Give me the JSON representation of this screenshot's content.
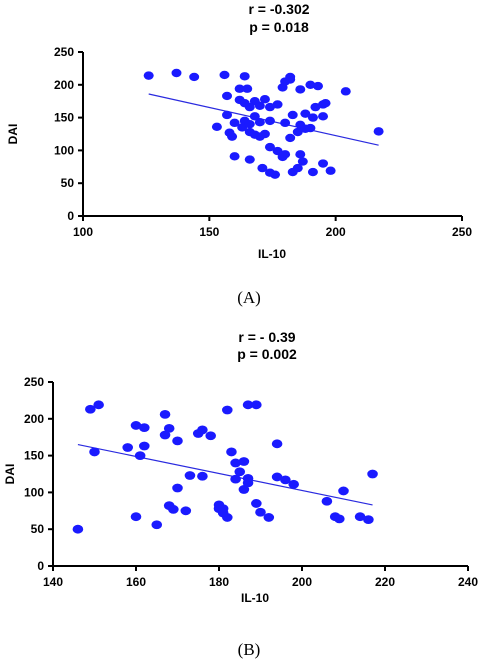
{
  "chart_data": [
    {
      "type": "scatter",
      "panel_label": "(A)",
      "annotation_r": "r = -0.302",
      "annotation_p": "p = 0.018",
      "xlabel": "IL-10",
      "ylabel": "DAI",
      "xlim": [
        100,
        250
      ],
      "ylim": [
        0,
        250
      ],
      "x_ticks": [
        "100",
        "150",
        "200",
        "250"
      ],
      "y_ticks": [
        "0",
        "50",
        "100",
        "150",
        "200",
        "250"
      ],
      "grid": false,
      "point_color": "#1a1aff",
      "line_color": "#2a2adf",
      "points": [
        [
          126,
          214
        ],
        [
          137,
          218
        ],
        [
          144,
          212
        ],
        [
          156,
          215
        ],
        [
          164,
          213
        ],
        [
          182,
          212
        ],
        [
          157,
          183
        ],
        [
          162,
          194
        ],
        [
          162,
          177
        ],
        [
          165,
          194
        ],
        [
          164,
          172
        ],
        [
          168,
          175
        ],
        [
          172,
          178
        ],
        [
          174,
          166
        ],
        [
          170,
          168
        ],
        [
          166,
          166
        ],
        [
          177,
          170
        ],
        [
          179,
          196
        ],
        [
          180,
          205
        ],
        [
          182,
          208
        ],
        [
          186,
          193
        ],
        [
          190,
          200
        ],
        [
          193,
          198
        ],
        [
          195,
          170
        ],
        [
          204,
          190
        ],
        [
          192,
          166
        ],
        [
          196,
          172
        ],
        [
          157,
          154
        ],
        [
          160,
          142
        ],
        [
          164,
          145
        ],
        [
          163,
          135
        ],
        [
          166,
          140
        ],
        [
          168,
          152
        ],
        [
          170,
          143
        ],
        [
          174,
          145
        ],
        [
          180,
          142
        ],
        [
          183,
          154
        ],
        [
          186,
          139
        ],
        [
          188,
          156
        ],
        [
          191,
          150
        ],
        [
          195,
          152
        ],
        [
          153,
          136
        ],
        [
          158,
          127
        ],
        [
          159,
          121
        ],
        [
          166,
          128
        ],
        [
          168,
          124
        ],
        [
          170,
          121
        ],
        [
          172,
          125
        ],
        [
          174,
          105
        ],
        [
          177,
          99
        ],
        [
          180,
          94
        ],
        [
          185,
          128
        ],
        [
          188,
          133
        ],
        [
          190,
          134
        ],
        [
          182,
          119
        ],
        [
          160,
          91
        ],
        [
          166,
          86
        ],
        [
          171,
          73
        ],
        [
          176,
          63
        ],
        [
          179,
          90
        ],
        [
          183,
          67
        ],
        [
          186,
          94
        ],
        [
          187,
          83
        ],
        [
          191,
          67
        ],
        [
          195,
          80
        ],
        [
          198,
          69
        ],
        [
          217,
          129
        ],
        [
          185,
          73
        ],
        [
          174,
          66
        ]
      ],
      "fit_line": {
        "x": [
          126,
          217
        ],
        "y": [
          186,
          108
        ]
      }
    },
    {
      "type": "scatter",
      "panel_label": "(B)",
      "annotation_r": "r = - 0.39",
      "annotation_p": "p = 0.002",
      "xlabel": "IL-10",
      "ylabel": "DAI",
      "xlim": [
        140,
        240
      ],
      "ylim": [
        0,
        250
      ],
      "x_ticks": [
        "140",
        "160",
        "180",
        "200",
        "220",
        "240"
      ],
      "y_ticks": [
        "0",
        "50",
        "100",
        "150",
        "200",
        "250"
      ],
      "grid": false,
      "point_color": "#1a1aff",
      "line_color": "#2a2adf",
      "points": [
        [
          146,
          50
        ],
        [
          149,
          213
        ],
        [
          151,
          219
        ],
        [
          150,
          155
        ],
        [
          158,
          161
        ],
        [
          160,
          191
        ],
        [
          161,
          150
        ],
        [
          162,
          163
        ],
        [
          162,
          188
        ],
        [
          160,
          67
        ],
        [
          165,
          56
        ],
        [
          167,
          206
        ],
        [
          168,
          187
        ],
        [
          167,
          178
        ],
        [
          170,
          170
        ],
        [
          168,
          82
        ],
        [
          169,
          77
        ],
        [
          170,
          106
        ],
        [
          172,
          75
        ],
        [
          173,
          123
        ],
        [
          175,
          180
        ],
        [
          176,
          185
        ],
        [
          176,
          122
        ],
        [
          178,
          177
        ],
        [
          180,
          83
        ],
        [
          180,
          78
        ],
        [
          181,
          72
        ],
        [
          182,
          66
        ],
        [
          182,
          212
        ],
        [
          183,
          155
        ],
        [
          184,
          140
        ],
        [
          185,
          128
        ],
        [
          186,
          142
        ],
        [
          186,
          104
        ],
        [
          187,
          119
        ],
        [
          187,
          219
        ],
        [
          189,
          219
        ],
        [
          189,
          85
        ],
        [
          187,
          113
        ],
        [
          190,
          73
        ],
        [
          192,
          66
        ],
        [
          194,
          166
        ],
        [
          194,
          121
        ],
        [
          196,
          117
        ],
        [
          198,
          111
        ],
        [
          206,
          88
        ],
        [
          208,
          67
        ],
        [
          209,
          64
        ],
        [
          210,
          102
        ],
        [
          214,
          67
        ],
        [
          216,
          63
        ],
        [
          217,
          125
        ],
        [
          181,
          78
        ],
        [
          184,
          118
        ]
      ],
      "fit_line": {
        "x": [
          146,
          217
        ],
        "y": [
          165,
          83
        ]
      }
    }
  ]
}
